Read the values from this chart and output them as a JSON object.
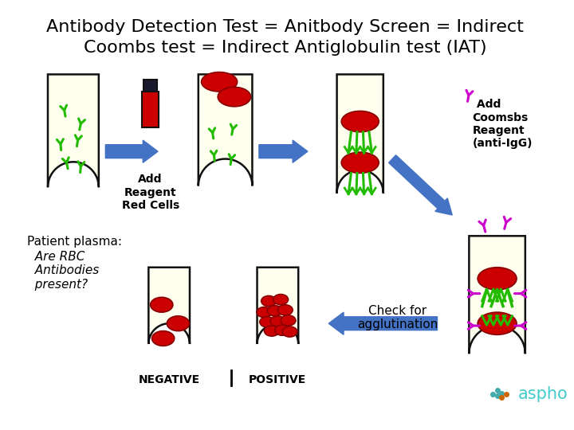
{
  "title_line1": "Antibody Detection Test = Anitbody Screen = Indirect",
  "title_line2": "Coombs test = Indirect Antiglobulin test (IAT)",
  "title_fontsize": 16,
  "bg_color": "#ffffff",
  "tube_fill": "#fffff0",
  "tube_stroke": "#111111",
  "rbc_color": "#cc0000",
  "antibody_color": "#22bb00",
  "coombs_ab_color": "#cc00cc",
  "arrow_color": "#4472c4",
  "label_add_reagent": "Add\nReagent\nRed Cells",
  "label_add_coombs": " Add\nCoomsbs\nReagent\n(anti-IgG)",
  "label_patient_1": "Patient plasma:",
  "label_patient_2": "  Are RBC\n  Antibodies\n  present?",
  "label_check": "Check for\nagglutination",
  "label_negative": "NEGATIVE",
  "label_positive": "POSITIVE",
  "aspho_color": "#44cccc"
}
